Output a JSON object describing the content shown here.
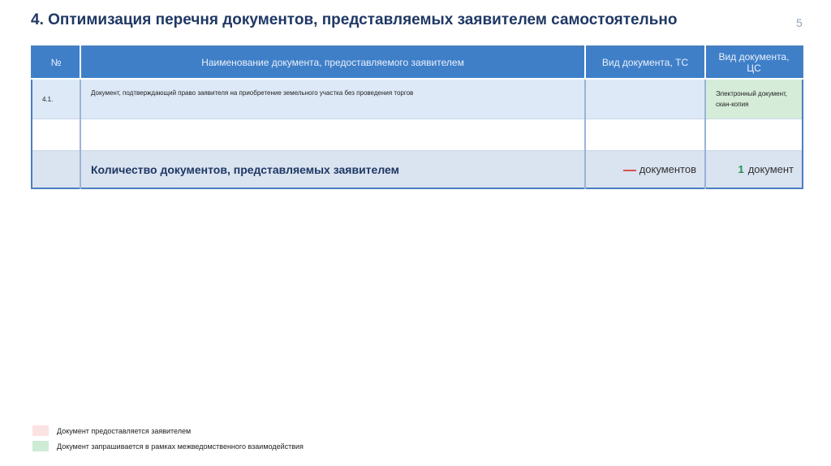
{
  "title": "4. Оптимизация перечня документов, представляемых заявителем самостоятельно",
  "page_number": "5",
  "table": {
    "headers": [
      "№",
      "Наименование документа, предоставляемого заявителем",
      "Вид документа, ТС",
      "Вид документа, ЦС"
    ],
    "rows": [
      {
        "num": "4.1.",
        "name": "Документ, подтверждающий право заявителя на приобретение земельного участка без проведения торгов",
        "tc": "",
        "cs": "Электронный документ, скан-копия"
      }
    ],
    "summary": {
      "label": "Количество документов, представляемых заявителем",
      "tc_count": "",
      "tc_unit": "документов",
      "cs_count": "1",
      "cs_unit": "документ"
    }
  },
  "legend": [
    {
      "label": "Документ предоставляется заявителем",
      "color": "#fbe3e3"
    },
    {
      "label": "Документ запрашивается в рамках межведомственного взаимодействия",
      "color": "#cdebd5"
    }
  ]
}
